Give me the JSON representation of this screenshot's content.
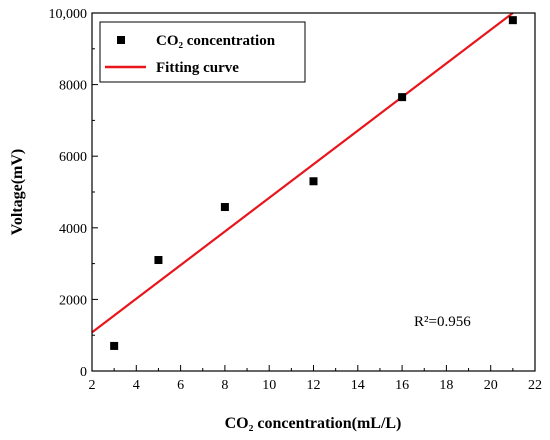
{
  "chart_data": {
    "type": "scatter",
    "xlabel": "CO₂ concentration(mL/L)",
    "ylabel": "Voltage(mV)",
    "xlim": [
      2,
      22
    ],
    "ylim": [
      0,
      10000
    ],
    "xticks": [
      2,
      4,
      6,
      8,
      10,
      12,
      14,
      16,
      18,
      20,
      22
    ],
    "yticks": [
      0,
      2000,
      4000,
      6000,
      8000,
      10000
    ],
    "ytick_labels": [
      "0",
      "2000",
      "4000",
      "6000",
      "8000",
      "10,000"
    ],
    "series": [
      {
        "name": "CO₂ concentration",
        "type": "scatter",
        "marker": "square",
        "color": "#000000",
        "x": [
          3,
          5,
          8,
          12,
          16,
          21
        ],
        "y": [
          700,
          3100,
          4580,
          5300,
          7650,
          9800
        ]
      },
      {
        "name": "Fitting curve",
        "type": "line",
        "color": "#e8151b",
        "x": [
          2,
          21
        ],
        "y": [
          1080,
          10000
        ]
      }
    ],
    "annotation": "R²=0.956",
    "legend_position": "top-left",
    "grid": false
  }
}
